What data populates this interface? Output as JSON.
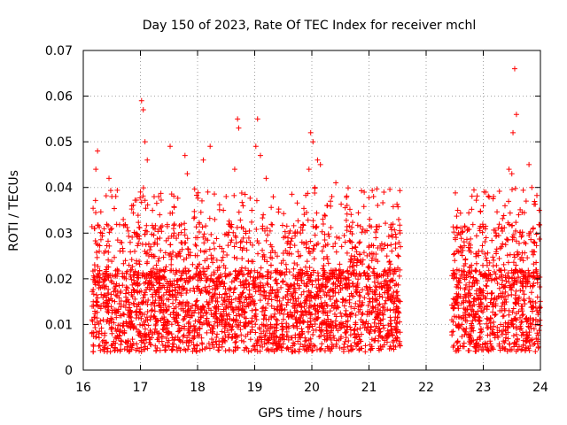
{
  "chart_data": {
    "type": "scatter",
    "title": "Day 150 of 2023, Rate Of TEC Index for receiver mchl",
    "xlabel": "GPS time / hours",
    "ylabel": "ROTI / TECUs",
    "xlim": [
      16,
      24
    ],
    "ylim": [
      0,
      0.07
    ],
    "xticks": [
      "16",
      "17",
      "18",
      "19",
      "20",
      "21",
      "22",
      "23",
      "24"
    ],
    "yticks": [
      "0",
      "0.01",
      "0.02",
      "0.03",
      "0.04",
      "0.05",
      "0.06",
      "0.07"
    ],
    "grid": true,
    "marker": "+",
    "color": "#ff0000",
    "series": [
      {
        "name": "ROTI",
        "points": [
          [
            16.15,
            0.008
          ],
          [
            16.18,
            0.014
          ],
          [
            16.2,
            0.031
          ],
          [
            16.22,
            0.044
          ],
          [
            16.25,
            0.048
          ],
          [
            16.28,
            0.026
          ],
          [
            16.3,
            0.018
          ],
          [
            16.35,
            0.011
          ],
          [
            16.4,
            0.022
          ],
          [
            16.45,
            0.042
          ],
          [
            16.5,
            0.038
          ],
          [
            16.55,
            0.015
          ],
          [
            16.6,
            0.009
          ],
          [
            16.65,
            0.028
          ],
          [
            16.7,
            0.033
          ],
          [
            16.75,
            0.02
          ],
          [
            16.8,
            0.012
          ],
          [
            16.85,
            0.036
          ],
          [
            16.9,
            0.026
          ],
          [
            16.95,
            0.017
          ],
          [
            17.0,
            0.039
          ],
          [
            17.02,
            0.059
          ],
          [
            17.05,
            0.057
          ],
          [
            17.08,
            0.05
          ],
          [
            17.12,
            0.046
          ],
          [
            17.18,
            0.027
          ],
          [
            17.25,
            0.014
          ],
          [
            17.32,
            0.038
          ],
          [
            17.4,
            0.022
          ],
          [
            17.45,
            0.017
          ],
          [
            17.52,
            0.049
          ],
          [
            17.58,
            0.031
          ],
          [
            17.62,
            0.012
          ],
          [
            17.7,
            0.025
          ],
          [
            17.78,
            0.047
          ],
          [
            17.82,
            0.043
          ],
          [
            17.88,
            0.02
          ],
          [
            17.95,
            0.009
          ],
          [
            18.0,
            0.029
          ],
          [
            18.1,
            0.046
          ],
          [
            18.18,
            0.039
          ],
          [
            18.22,
            0.049
          ],
          [
            18.3,
            0.033
          ],
          [
            18.35,
            0.018
          ],
          [
            18.42,
            0.024
          ],
          [
            18.5,
            0.038
          ],
          [
            18.58,
            0.028
          ],
          [
            18.65,
            0.044
          ],
          [
            18.7,
            0.055
          ],
          [
            18.72,
            0.053
          ],
          [
            18.8,
            0.031
          ],
          [
            18.88,
            0.021
          ],
          [
            18.95,
            0.035
          ],
          [
            19.02,
            0.049
          ],
          [
            19.05,
            0.055
          ],
          [
            19.1,
            0.047
          ],
          [
            19.15,
            0.034
          ],
          [
            19.2,
            0.042
          ],
          [
            19.3,
            0.027
          ],
          [
            19.4,
            0.016
          ],
          [
            19.5,
            0.024
          ],
          [
            19.6,
            0.03
          ],
          [
            19.7,
            0.014
          ],
          [
            19.8,
            0.022
          ],
          [
            19.9,
            0.028
          ],
          [
            19.95,
            0.044
          ],
          [
            19.98,
            0.052
          ],
          [
            20.02,
            0.05
          ],
          [
            20.05,
            0.04
          ],
          [
            20.1,
            0.046
          ],
          [
            20.15,
            0.045
          ],
          [
            20.2,
            0.032
          ],
          [
            20.28,
            0.017
          ],
          [
            20.35,
            0.038
          ],
          [
            20.42,
            0.041
          ],
          [
            20.6,
            0.012
          ],
          [
            20.7,
            0.028
          ],
          [
            20.75,
            0.006
          ],
          [
            20.8,
            0.019
          ],
          [
            21.02,
            0.015
          ],
          [
            21.05,
            0.024
          ],
          [
            21.08,
            0.038
          ],
          [
            21.12,
            0.029
          ],
          [
            21.2,
            0.011
          ],
          [
            21.3,
            0.019
          ],
          [
            21.35,
            0.008
          ],
          [
            21.45,
            0.022
          ],
          [
            21.48,
            0.013
          ],
          [
            21.52,
            0.033
          ],
          [
            22.45,
            0.011
          ],
          [
            22.5,
            0.024
          ],
          [
            22.55,
            0.016
          ],
          [
            22.6,
            0.027
          ],
          [
            22.65,
            0.009
          ],
          [
            22.75,
            0.014
          ],
          [
            22.85,
            0.019
          ],
          [
            22.92,
            0.026
          ],
          [
            23.0,
            0.036
          ],
          [
            23.05,
            0.029
          ],
          [
            23.1,
            0.021
          ],
          [
            23.18,
            0.038
          ],
          [
            23.25,
            0.019
          ],
          [
            23.32,
            0.031
          ],
          [
            23.38,
            0.036
          ],
          [
            23.45,
            0.044
          ],
          [
            23.5,
            0.043
          ],
          [
            23.52,
            0.052
          ],
          [
            23.55,
            0.066
          ],
          [
            23.58,
            0.056
          ],
          [
            23.62,
            0.034
          ],
          [
            23.7,
            0.024
          ],
          [
            23.75,
            0.037
          ],
          [
            23.8,
            0.045
          ],
          [
            23.85,
            0.04
          ],
          [
            23.9,
            0.028
          ],
          [
            23.95,
            0.016
          ],
          [
            23.98,
            0.035
          ]
        ]
      }
    ],
    "data_windows_hours": [
      [
        16.15,
        21.55
      ],
      [
        22.45,
        24.0
      ]
    ],
    "dense_band": {
      "low": 0.004,
      "high": 0.022
    }
  }
}
